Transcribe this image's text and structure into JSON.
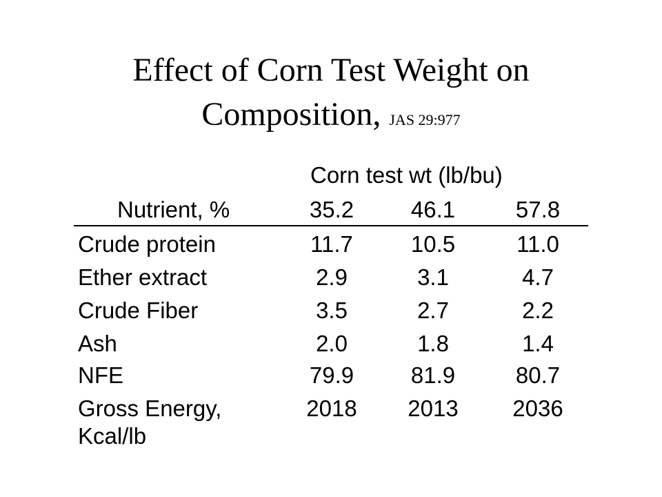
{
  "title": {
    "line1": "Effect of Corn Test Weight on",
    "line2": "Composition,",
    "reference": "JAS 29:977"
  },
  "table": {
    "group_header": "Corn test wt (lb/bu)",
    "column_headers": [
      "Nutrient, %",
      "35.2",
      "46.1",
      "57.8"
    ],
    "rows": [
      {
        "label": "Crude protein",
        "values": [
          "11.7",
          "10.5",
          "11.0"
        ]
      },
      {
        "label": "Ether extract",
        "values": [
          "2.9",
          "3.1",
          "4.7"
        ]
      },
      {
        "label": "Crude Fiber",
        "values": [
          "3.5",
          "2.7",
          "2.2"
        ]
      },
      {
        "label": "Ash",
        "values": [
          "2.0",
          "1.8",
          "1.4"
        ]
      },
      {
        "label": "NFE",
        "values": [
          "79.9",
          "81.9",
          "80.7"
        ]
      },
      {
        "label_line1": "Gross Energy,",
        "label_line2": "Kcal/lb",
        "values": [
          "2018",
          "2013",
          "2036"
        ]
      }
    ]
  }
}
